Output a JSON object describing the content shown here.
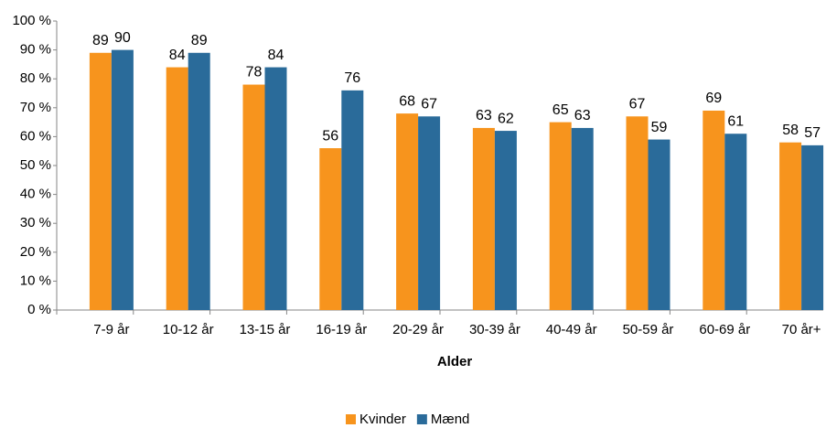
{
  "chart_data": {
    "type": "bar",
    "x_label": "Alder",
    "categories": [
      "7-9 år",
      "10-12 år",
      "13-15 år",
      "16-19 år",
      "20-29 år",
      "30-39 år",
      "40-49 år",
      "50-59 år",
      "60-69 år",
      "70 år+"
    ],
    "series": [
      {
        "name": "Kvinder",
        "color": "#F7941D",
        "values": [
          89,
          84,
          78,
          56,
          68,
          63,
          65,
          67,
          69,
          58
        ]
      },
      {
        "name": "Mænd",
        "color": "#2A6B9A",
        "values": [
          90,
          89,
          84,
          76,
          67,
          62,
          63,
          59,
          61,
          57
        ]
      }
    ],
    "ylim": [
      0,
      100
    ],
    "yticks": [
      {
        "value": 0,
        "label": "0 %"
      },
      {
        "value": 10,
        "label": "10 %"
      },
      {
        "value": 20,
        "label": "20 %"
      },
      {
        "value": 30,
        "label": "30 %"
      },
      {
        "value": 40,
        "label": "40 %"
      },
      {
        "value": 50,
        "label": "50 %"
      },
      {
        "value": 60,
        "label": "60 %"
      },
      {
        "value": 70,
        "label": "70 %"
      },
      {
        "value": 80,
        "label": "80 %"
      },
      {
        "value": 90,
        "label": "90 %"
      },
      {
        "value": 100,
        "label": "100 %"
      }
    ],
    "grid": false,
    "legend": "bottom"
  }
}
